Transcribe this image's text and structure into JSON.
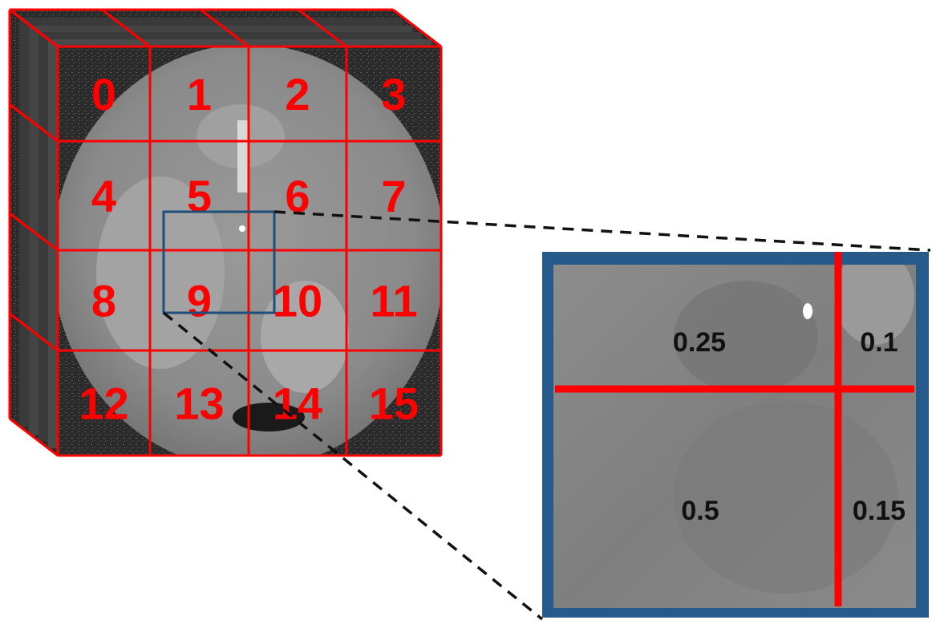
{
  "grid": {
    "rows": 4,
    "cols": 4,
    "cell_labels": [
      "0",
      "1",
      "2",
      "3",
      "4",
      "5",
      "6",
      "7",
      "8",
      "9",
      "10",
      "11",
      "12",
      "13",
      "14",
      "15"
    ],
    "line_color": "#ff0000",
    "label_color": "#ff0000"
  },
  "selection_box": {
    "color": "#1f4e79"
  },
  "zoom_panel": {
    "border_color": "#255a8a",
    "divider_color": "#ff0000",
    "weights": {
      "top_left": "0.25",
      "top_right": "0.1",
      "bottom_left": "0.5",
      "bottom_right": "0.15"
    }
  },
  "connector": {
    "style": "dashed",
    "color": "#111111"
  }
}
